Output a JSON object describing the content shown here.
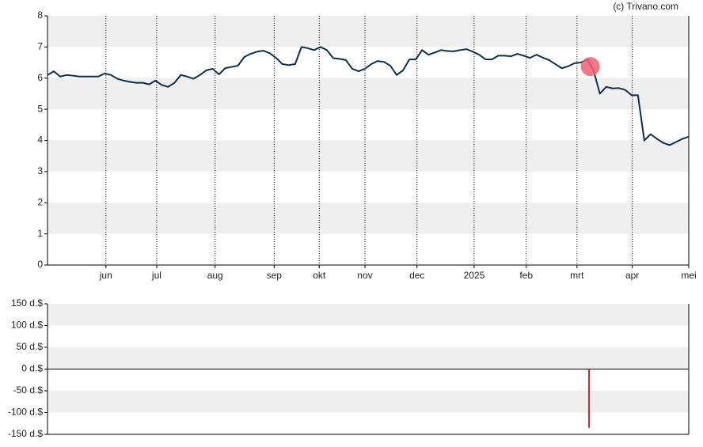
{
  "chart_data": [
    {
      "type": "line",
      "annotation": "(c) Trivano.com",
      "color": "#0d2f4f",
      "line_width": 2,
      "values": [
        6.1,
        6.22,
        6.05,
        6.1,
        6.08,
        6.05,
        6.05,
        6.05,
        6.05,
        6.15,
        6.1,
        5.98,
        5.92,
        5.88,
        5.85,
        5.85,
        5.8,
        5.92,
        5.78,
        5.72,
        5.85,
        6.1,
        6.05,
        5.98,
        6.1,
        6.25,
        6.3,
        6.12,
        6.32,
        6.36,
        6.4,
        6.68,
        6.78,
        6.85,
        6.88,
        6.8,
        6.65,
        6.45,
        6.42,
        6.45,
        7.0,
        6.96,
        6.9,
        7.0,
        6.9,
        6.64,
        6.62,
        6.58,
        6.3,
        6.22,
        6.3,
        6.45,
        6.55,
        6.52,
        6.4,
        6.1,
        6.25,
        6.6,
        6.6,
        6.9,
        6.75,
        6.82,
        6.9,
        6.87,
        6.86,
        6.9,
        6.93,
        6.85,
        6.75,
        6.6,
        6.6,
        6.72,
        6.72,
        6.7,
        6.78,
        6.72,
        6.65,
        6.75,
        6.66,
        6.58,
        6.45,
        6.32,
        6.38,
        6.48,
        6.5,
        6.6,
        6.25,
        5.5,
        5.72,
        5.67,
        5.68,
        5.62,
        5.45,
        5.45,
        4.0,
        4.2,
        4.05,
        3.92,
        3.85,
        3.95,
        4.05,
        4.12
      ],
      "marker": {
        "x": 85.5,
        "y": 6.37,
        "color": "#f06070"
      },
      "xlim": [
        0,
        101
      ],
      "xticks": [
        {
          "value": 9.2,
          "label": "jun"
        },
        {
          "value": 17.2,
          "label": "jul"
        },
        {
          "value": 26.4,
          "label": "aug"
        },
        {
          "value": 35.7,
          "label": "sep"
        },
        {
          "value": 42.8,
          "label": "okt"
        },
        {
          "value": 50,
          "label": "nov"
        },
        {
          "value": 58.2,
          "label": "dec"
        },
        {
          "value": 67.2,
          "label": "2025"
        },
        {
          "value": 75.4,
          "label": "feb"
        },
        {
          "value": 83.4,
          "label": "mrt"
        },
        {
          "value": 92.1,
          "label": "apr"
        },
        {
          "value": 101,
          "label": "mei"
        }
      ],
      "ylim": [
        0,
        8
      ],
      "yticks": [
        0,
        1,
        2,
        3,
        4,
        5,
        6,
        7,
        8
      ],
      "grid": "bands",
      "vertical_grid": true
    },
    {
      "type": "bar",
      "color": "#d0202a",
      "x": [
        85.3
      ],
      "values": [
        -135
      ],
      "xlim": [
        0,
        101
      ],
      "ylim": [
        -150,
        150
      ],
      "yticks": [
        {
          "value": -150,
          "label": "-150 d.$"
        },
        {
          "value": -100,
          "label": "-100 d.$"
        },
        {
          "value": -50,
          "label": "-50 d.$"
        },
        {
          "value": 0,
          "label": "0 d.$"
        },
        {
          "value": 50,
          "label": "50 d.$"
        },
        {
          "value": 100,
          "label": "100 d.$"
        },
        {
          "value": 150,
          "label": "150 d.$"
        }
      ],
      "grid": "bands"
    }
  ]
}
